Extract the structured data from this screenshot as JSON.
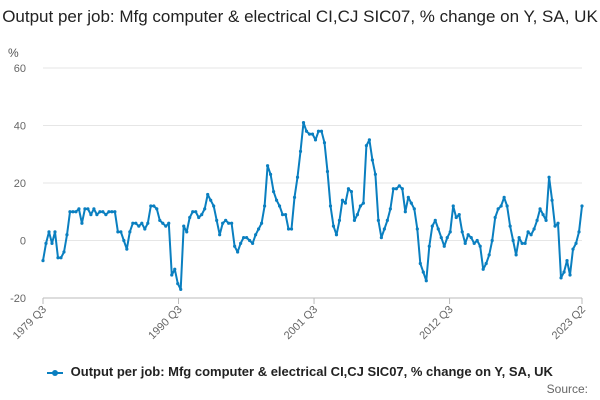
{
  "title": "Output per job: Mfg computer & electrical CI,CJ SIC07, % change on Y, SA, UK",
  "unit": "%",
  "source_label": "Source:",
  "colors": {
    "series": "#0a7fc0",
    "grid": "#e6e6e6",
    "axis": "#bbbbbb",
    "text": "#666666"
  },
  "chart_data": {
    "type": "line",
    "title": "Output per job: Mfg computer & electrical CI,CJ SIC07, % change on Y, SA, UK",
    "ylabel": "%",
    "ylim": [
      -20,
      60
    ],
    "yticks": [
      -20,
      0,
      20,
      40,
      60
    ],
    "xlim": [
      "1979 Q3",
      "2023 Q2"
    ],
    "xticks": [
      "1979 Q3",
      "1990 Q3",
      "2001 Q3",
      "2012 Q3",
      "2023 Q2"
    ],
    "grid": "horizontal",
    "legend_position": "bottom",
    "series": [
      {
        "name": "Output per job: Mfg computer & electrical CI,CJ SIC07, % change on Y, SA, UK",
        "x_start": "1979 Q3",
        "frequency": "quarterly",
        "values": [
          -7,
          -1,
          3,
          -1,
          3,
          -6,
          -6,
          -4,
          2,
          10,
          10,
          10,
          11,
          6,
          11,
          11,
          9,
          11,
          9,
          10,
          10,
          9,
          10,
          10,
          10,
          3,
          3,
          0,
          -3,
          3,
          6,
          6,
          5,
          6,
          4,
          6,
          12,
          12,
          11,
          7,
          6,
          5,
          6,
          -12,
          -10,
          -15,
          -17,
          5,
          3,
          8,
          10,
          10,
          8,
          9,
          11,
          16,
          14,
          12,
          7,
          2,
          6,
          7,
          6,
          6,
          -2,
          -4,
          -1,
          1,
          1,
          0,
          -1,
          2,
          4,
          6,
          12,
          26,
          23,
          17,
          14,
          12,
          9,
          9,
          4,
          4,
          15,
          22,
          31,
          41,
          38,
          37,
          37,
          35,
          38,
          38,
          34,
          24,
          12,
          5,
          2,
          7,
          14,
          13,
          18,
          17,
          7,
          9,
          12,
          13,
          33,
          35,
          28,
          23,
          7,
          1,
          4,
          7,
          11,
          18,
          18,
          19,
          18,
          10,
          15,
          13,
          11,
          4,
          -8,
          -11,
          -14,
          -2,
          5,
          7,
          4,
          1,
          -2,
          1,
          3,
          12,
          8,
          9,
          3,
          -1,
          2,
          1,
          -1,
          0,
          -2,
          -10,
          -8,
          -5,
          0,
          8,
          11,
          12,
          15,
          12,
          5,
          0,
          -5,
          1,
          -1,
          -1,
          3,
          2,
          4,
          7,
          11,
          9,
          7,
          22,
          14,
          5,
          6,
          -13,
          -11,
          -7,
          -12,
          -3,
          -1,
          3,
          12
        ]
      }
    ]
  },
  "legend": {
    "label": "Output per job: Mfg computer & electrical CI,CJ SIC07, % change on Y, SA, UK"
  }
}
